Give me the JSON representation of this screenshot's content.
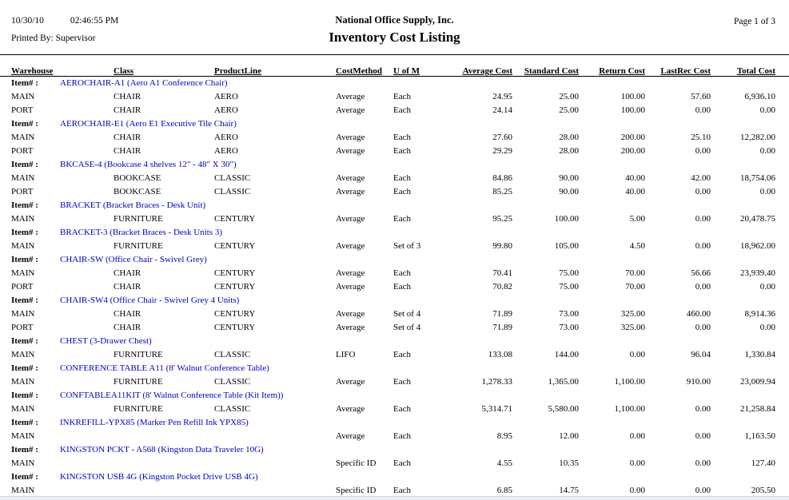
{
  "report": {
    "date": "10/30/10",
    "time": "02:46:55 PM",
    "printed_by": "Printed By: Supervisor",
    "company": "National Office Supply, Inc.",
    "title": "Inventory Cost Listing",
    "page": "Page 1 of 3"
  },
  "table": {
    "item_label": "Item# :",
    "columns": [
      "Warehouse",
      "Class",
      "ProductLine",
      "CostMethod",
      "U of M",
      "Average Cost",
      "Standard Cost",
      "Return Cost",
      "LastRec Cost",
      "Total Cost"
    ],
    "groups": [
      {
        "item": "AEROCHAIR-A1 (Aero A1 Conference Chair)",
        "rows": [
          [
            "MAIN",
            "CHAIR",
            "AERO",
            "Average",
            "Each",
            "24.95",
            "25.00",
            "100.00",
            "57.60",
            "6,936.10"
          ],
          [
            "PORT",
            "CHAIR",
            "AERO",
            "Average",
            "Each",
            "24.14",
            "25.00",
            "100.00",
            "0.00",
            "0.00"
          ]
        ]
      },
      {
        "item": "AEROCHAIR-E1 (Aero E1 Executive Tile Chair)",
        "rows": [
          [
            "MAIN",
            "CHAIR",
            "AERO",
            "Average",
            "Each",
            "27.60",
            "28.00",
            "200.00",
            "25.10",
            "12,282.00"
          ],
          [
            "PORT",
            "CHAIR",
            "AERO",
            "Average",
            "Each",
            "29.29",
            "28.00",
            "200.00",
            "0.00",
            "0.00"
          ]
        ]
      },
      {
        "item": "BKCASE-4 (Bookcase 4 shelves 12\" - 48\" X 30\")",
        "rows": [
          [
            "MAIN",
            "BOOKCASE",
            "CLASSIC",
            "Average",
            "Each",
            "84.86",
            "90.00",
            "40.00",
            "42.00",
            "18,754.06"
          ],
          [
            "PORT",
            "BOOKCASE",
            "CLASSIC",
            "Average",
            "Each",
            "85.25",
            "90.00",
            "40.00",
            "0.00",
            "0.00"
          ]
        ]
      },
      {
        "item": "BRACKET (Bracket Braces - Desk Unit)",
        "rows": [
          [
            "MAIN",
            "FURNITURE",
            "CENTURY",
            "Average",
            "Each",
            "95.25",
            "100.00",
            "5.00",
            "0.00",
            "20,478.75"
          ]
        ]
      },
      {
        "item": "BRACKET-3 (Bracket Braces - Desk Units 3)",
        "rows": [
          [
            "MAIN",
            "FURNITURE",
            "CENTURY",
            "Average",
            "Set of 3",
            "99.80",
            "105.00",
            "4.50",
            "0.00",
            "18,962.00"
          ]
        ]
      },
      {
        "item": "CHAIR-SW (Office Chair - Swivel Grey)",
        "rows": [
          [
            "MAIN",
            "CHAIR",
            "CENTURY",
            "Average",
            "Each",
            "70.41",
            "75.00",
            "70.00",
            "56.66",
            "23,939.40"
          ],
          [
            "PORT",
            "CHAIR",
            "CENTURY",
            "Average",
            "Each",
            "70.82",
            "75.00",
            "70.00",
            "0.00",
            "0.00"
          ]
        ]
      },
      {
        "item": "CHAIR-SW4 (Office Chair - Swivel Grey 4 Units)",
        "rows": [
          [
            "MAIN",
            "CHAIR",
            "CENTURY",
            "Average",
            "Set of 4",
            "71.89",
            "73.00",
            "325.00",
            "460.00",
            "8,914.36"
          ],
          [
            "PORT",
            "CHAIR",
            "CENTURY",
            "Average",
            "Set of 4",
            "71.89",
            "73.00",
            "325.00",
            "0.00",
            "0.00"
          ]
        ]
      },
      {
        "item": "CHEST (3-Drawer Chest)",
        "rows": [
          [
            "MAIN",
            "FURNITURE",
            "CLASSIC",
            "LIFO",
            "Each",
            "133.08",
            "144.00",
            "0.00",
            "96.04",
            "1,330.84"
          ]
        ]
      },
      {
        "item": "CONFERENCE TABLE A11 (8' Walnut Conference Table)",
        "rows": [
          [
            "MAIN",
            "FURNITURE",
            "CLASSIC",
            "Average",
            "Each",
            "1,278.33",
            "1,365.00",
            "1,100.00",
            "910.00",
            "23,009.94"
          ]
        ]
      },
      {
        "item": "CONFTABLEA11KIT (8' Walnut Conference Table (Kit Item))",
        "rows": [
          [
            "MAIN",
            "FURNITURE",
            "CLASSIC",
            "Average",
            "Each",
            "5,314.71",
            "5,580.00",
            "1,100.00",
            "0.00",
            "21,258.84"
          ]
        ]
      },
      {
        "item": "INKREFILL-YPX85 (Marker Pen Refill Ink YPX85)",
        "rows": [
          [
            "MAIN",
            "",
            "",
            "Average",
            "Each",
            "8.95",
            "12.00",
            "0.00",
            "0.00",
            "1,163.50"
          ]
        ]
      },
      {
        "item": "KINGSTON PCKT - A568 (Kingston Data Traveler 10G)",
        "rows": [
          [
            "MAIN",
            "",
            "",
            "Specific ID",
            "Each",
            "4.55",
            "10.35",
            "0.00",
            "0.00",
            "127.40"
          ]
        ]
      },
      {
        "item": "KINGSTON USB 4G (Kingston Pocket Drive USB 4G)",
        "rows": [
          [
            "MAIN",
            "",
            "",
            "Specific ID",
            "Each",
            "6.85",
            "14.75",
            "0.00",
            "0.00",
            "205.50"
          ]
        ]
      }
    ]
  },
  "colors": {
    "item_link": "#0000CC",
    "text": "#000000",
    "rule": "#000000",
    "bottom_strip": "#edf1f5"
  }
}
